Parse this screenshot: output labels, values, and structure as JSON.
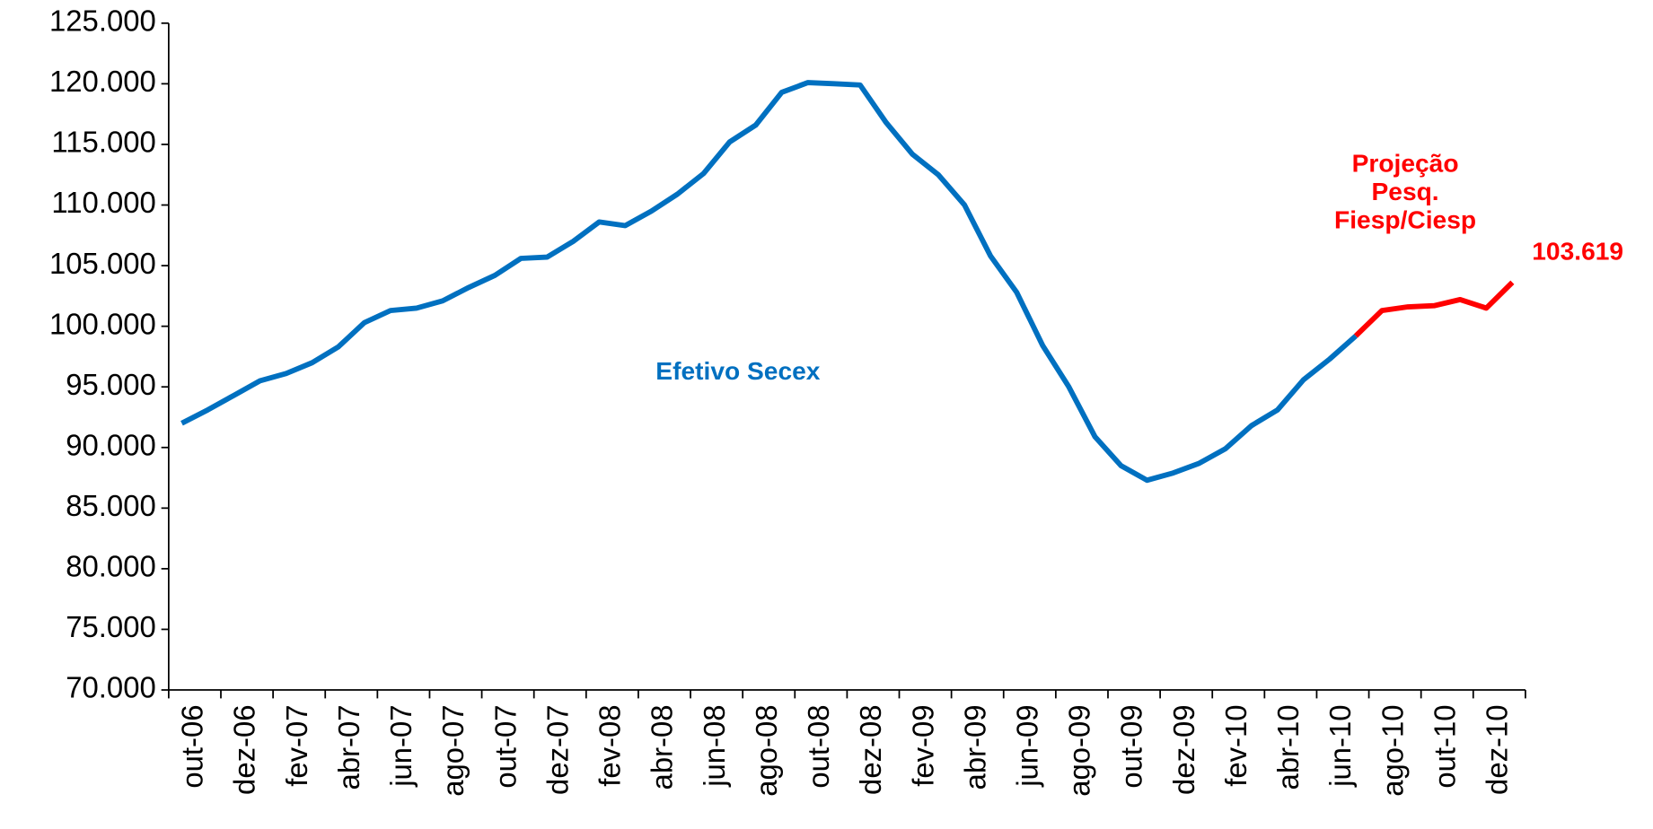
{
  "chart_data": {
    "type": "line",
    "categories": [
      "out-06",
      null,
      "dez-06",
      null,
      "fev-07",
      null,
      "abr-07",
      null,
      "jun-07",
      null,
      "ago-07",
      null,
      "out-07",
      null,
      "dez-07",
      null,
      "fev-08",
      null,
      "abr-08",
      null,
      "jun-08",
      null,
      "ago-08",
      null,
      "out-08",
      null,
      "dez-08",
      null,
      "fev-09",
      null,
      "abr-09",
      null,
      "jun-09",
      null,
      "ago-09",
      null,
      "out-09",
      null,
      "dez-09",
      null,
      "fev-10",
      null,
      "abr-10",
      null,
      "jun-10",
      null,
      "ago-10",
      null,
      "out-10",
      null,
      "dez-10",
      null
    ],
    "series": [
      {
        "name": "Efetivo Secex",
        "color": "#0070c0",
        "values": [
          92000,
          93100,
          94300,
          95500,
          96100,
          97000,
          98300,
          100300,
          101300,
          101500,
          102100,
          103200,
          104200,
          105600,
          105700,
          107000,
          108600,
          108300,
          109500,
          110900,
          112600,
          115200,
          116600,
          119300,
          120100,
          120000,
          119900,
          116800,
          114200,
          112500,
          110000,
          105800,
          102800,
          98400,
          95000,
          90900,
          88500,
          87300,
          87900,
          88700,
          89900,
          91800,
          93100,
          95600,
          97300,
          99200,
          null,
          null,
          null,
          null,
          null,
          null
        ]
      },
      {
        "name": "Projeção Pesq. Fiesp/Ciesp",
        "color": "#ff0000",
        "values": [
          null,
          null,
          null,
          null,
          null,
          null,
          null,
          null,
          null,
          null,
          null,
          null,
          null,
          null,
          null,
          null,
          null,
          null,
          null,
          null,
          null,
          null,
          null,
          null,
          null,
          null,
          null,
          null,
          null,
          null,
          null,
          null,
          null,
          null,
          null,
          null,
          null,
          null,
          null,
          null,
          null,
          null,
          null,
          null,
          null,
          99200,
          101300,
          101600,
          101700,
          102200,
          101500,
          103619
        ],
        "value_labels": [
          null,
          null,
          null,
          null,
          null,
          null,
          null,
          null,
          null,
          null,
          null,
          null,
          null,
          null,
          null,
          null,
          null,
          null,
          null,
          null,
          null,
          null,
          null,
          null,
          null,
          null,
          null,
          null,
          null,
          null,
          null,
          null,
          null,
          null,
          null,
          null,
          null,
          null,
          null,
          null,
          null,
          null,
          null,
          null,
          null,
          null,
          null,
          null,
          null,
          null,
          null,
          "103.619"
        ]
      }
    ],
    "ylim": [
      70000,
      125000
    ],
    "yticks": [
      {
        "value": 70000,
        "label": "70.000"
      },
      {
        "value": 75000,
        "label": "75.000"
      },
      {
        "value": 80000,
        "label": "80.000"
      },
      {
        "value": 85000,
        "label": "85.000"
      },
      {
        "value": 90000,
        "label": "90.000"
      },
      {
        "value": 95000,
        "label": "95.000"
      },
      {
        "value": 100000,
        "label": "100.000"
      },
      {
        "value": 105000,
        "label": "105.000"
      },
      {
        "value": 110000,
        "label": "110.000"
      },
      {
        "value": 115000,
        "label": "115.000"
      },
      {
        "value": 120000,
        "label": "120.000"
      },
      {
        "value": 125000,
        "label": "125.000"
      }
    ],
    "grid": false
  }
}
